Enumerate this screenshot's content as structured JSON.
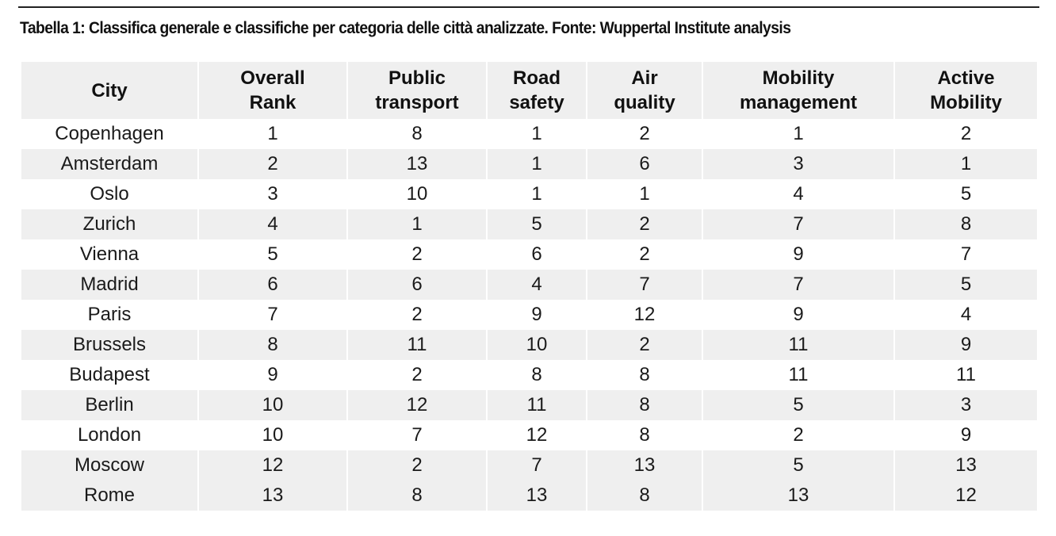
{
  "caption": "Tabella 1: Classifica generale e classifiche per categoria delle città analizzate. Fonte: Wuppertal Institute analysis",
  "table": {
    "headers": [
      [
        "City",
        ""
      ],
      [
        "Overall",
        "Rank"
      ],
      [
        "Public",
        "transport"
      ],
      [
        "Road",
        "safety"
      ],
      [
        "Air",
        "quality"
      ],
      [
        "Mobility",
        "management"
      ],
      [
        "Active",
        "Mobility"
      ]
    ],
    "rows": [
      [
        "Copenhagen",
        "1",
        "8",
        "1",
        "2",
        "1",
        "2"
      ],
      [
        "Amsterdam",
        "2",
        "13",
        "1",
        "6",
        "3",
        "1"
      ],
      [
        "Oslo",
        "3",
        "10",
        "1",
        "1",
        "4",
        "5"
      ],
      [
        "Zurich",
        "4",
        "1",
        "5",
        "2",
        "7",
        "8"
      ],
      [
        "Vienna",
        "5",
        "2",
        "6",
        "2",
        "9",
        "7"
      ],
      [
        "Madrid",
        "6",
        "6",
        "4",
        "7",
        "7",
        "5"
      ],
      [
        "Paris",
        "7",
        "2",
        "9",
        "12",
        "9",
        "4"
      ],
      [
        "Brussels",
        "8",
        "11",
        "10",
        "2",
        "11",
        "9"
      ],
      [
        "Budapest",
        "9",
        "2",
        "8",
        "8",
        "11",
        "11"
      ],
      [
        "Berlin",
        "10",
        "12",
        "11",
        "8",
        "5",
        "3"
      ],
      [
        "London",
        "10",
        "7",
        "12",
        "8",
        "2",
        "9"
      ],
      [
        "Moscow",
        "12",
        "2",
        "7",
        "13",
        "5",
        "13"
      ],
      [
        "Rome",
        "13",
        "8",
        "13",
        "8",
        "13",
        "12"
      ]
    ]
  }
}
